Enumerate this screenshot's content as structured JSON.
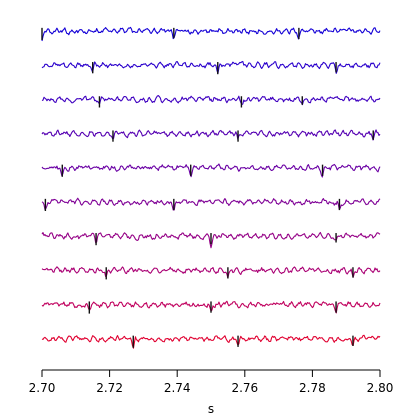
{
  "chart_data": {
    "type": "line",
    "title": "",
    "xlabel": "s",
    "ylabel": "",
    "xlim": [
      2.7,
      2.8
    ],
    "x_ticks": [
      2.7,
      2.72,
      2.74,
      2.76,
      2.78,
      2.8
    ],
    "x_tick_labels": [
      "2.70",
      "2.72",
      "2.74",
      "2.76",
      "2.78",
      "2.80"
    ],
    "grid": false,
    "legend": "none",
    "y_axis_shown": false,
    "trace_count": 10,
    "trace_style": "stacked",
    "series": [
      {
        "color": "#1400d6",
        "spikes": [
          {
            "x": 2.7,
            "amp": -1.0
          },
          {
            "x": 2.739,
            "amp": -0.8
          },
          {
            "x": 2.776,
            "amp": -0.9
          }
        ]
      },
      {
        "color": "#2a00cc",
        "spikes": [
          {
            "x": 2.715,
            "amp": -0.9
          },
          {
            "x": 2.752,
            "amp": -1.0
          },
          {
            "x": 2.787,
            "amp": -0.8
          }
        ]
      },
      {
        "color": "#3f00c0",
        "spikes": [
          {
            "x": 2.717,
            "amp": -0.9
          },
          {
            "x": 2.759,
            "amp": -0.9
          },
          {
            "x": 2.777,
            "amp": -0.6
          }
        ]
      },
      {
        "color": "#5500b2",
        "spikes": [
          {
            "x": 2.721,
            "amp": -0.9
          },
          {
            "x": 2.758,
            "amp": -0.9
          },
          {
            "x": 2.798,
            "amp": -0.7
          }
        ]
      },
      {
        "color": "#6a00a4",
        "spikes": [
          {
            "x": 2.706,
            "amp": -1.0
          },
          {
            "x": 2.744,
            "amp": -0.9
          },
          {
            "x": 2.783,
            "amp": -0.9
          }
        ]
      },
      {
        "color": "#7f0096",
        "spikes": [
          {
            "x": 2.701,
            "amp": -1.0
          },
          {
            "x": 2.739,
            "amp": -0.9
          },
          {
            "x": 2.788,
            "amp": -0.9
          }
        ]
      },
      {
        "color": "#950086",
        "spikes": [
          {
            "x": 2.716,
            "amp": -1.0
          },
          {
            "x": 2.75,
            "amp": -0.9
          },
          {
            "x": 2.787,
            "amp": -0.7
          }
        ]
      },
      {
        "color": "#aa0074",
        "spikes": [
          {
            "x": 2.719,
            "amp": -1.0
          },
          {
            "x": 2.755,
            "amp": -0.9
          },
          {
            "x": 2.792,
            "amp": -0.8
          }
        ]
      },
      {
        "color": "#c0005e",
        "spikes": [
          {
            "x": 2.714,
            "amp": -1.0
          },
          {
            "x": 2.75,
            "amp": -0.9
          },
          {
            "x": 2.787,
            "amp": -0.9
          }
        ]
      },
      {
        "color": "#e00030",
        "spikes": [
          {
            "x": 2.727,
            "amp": -1.0
          },
          {
            "x": 2.758,
            "amp": -0.9
          },
          {
            "x": 2.792,
            "amp": -0.8
          }
        ]
      }
    ]
  }
}
